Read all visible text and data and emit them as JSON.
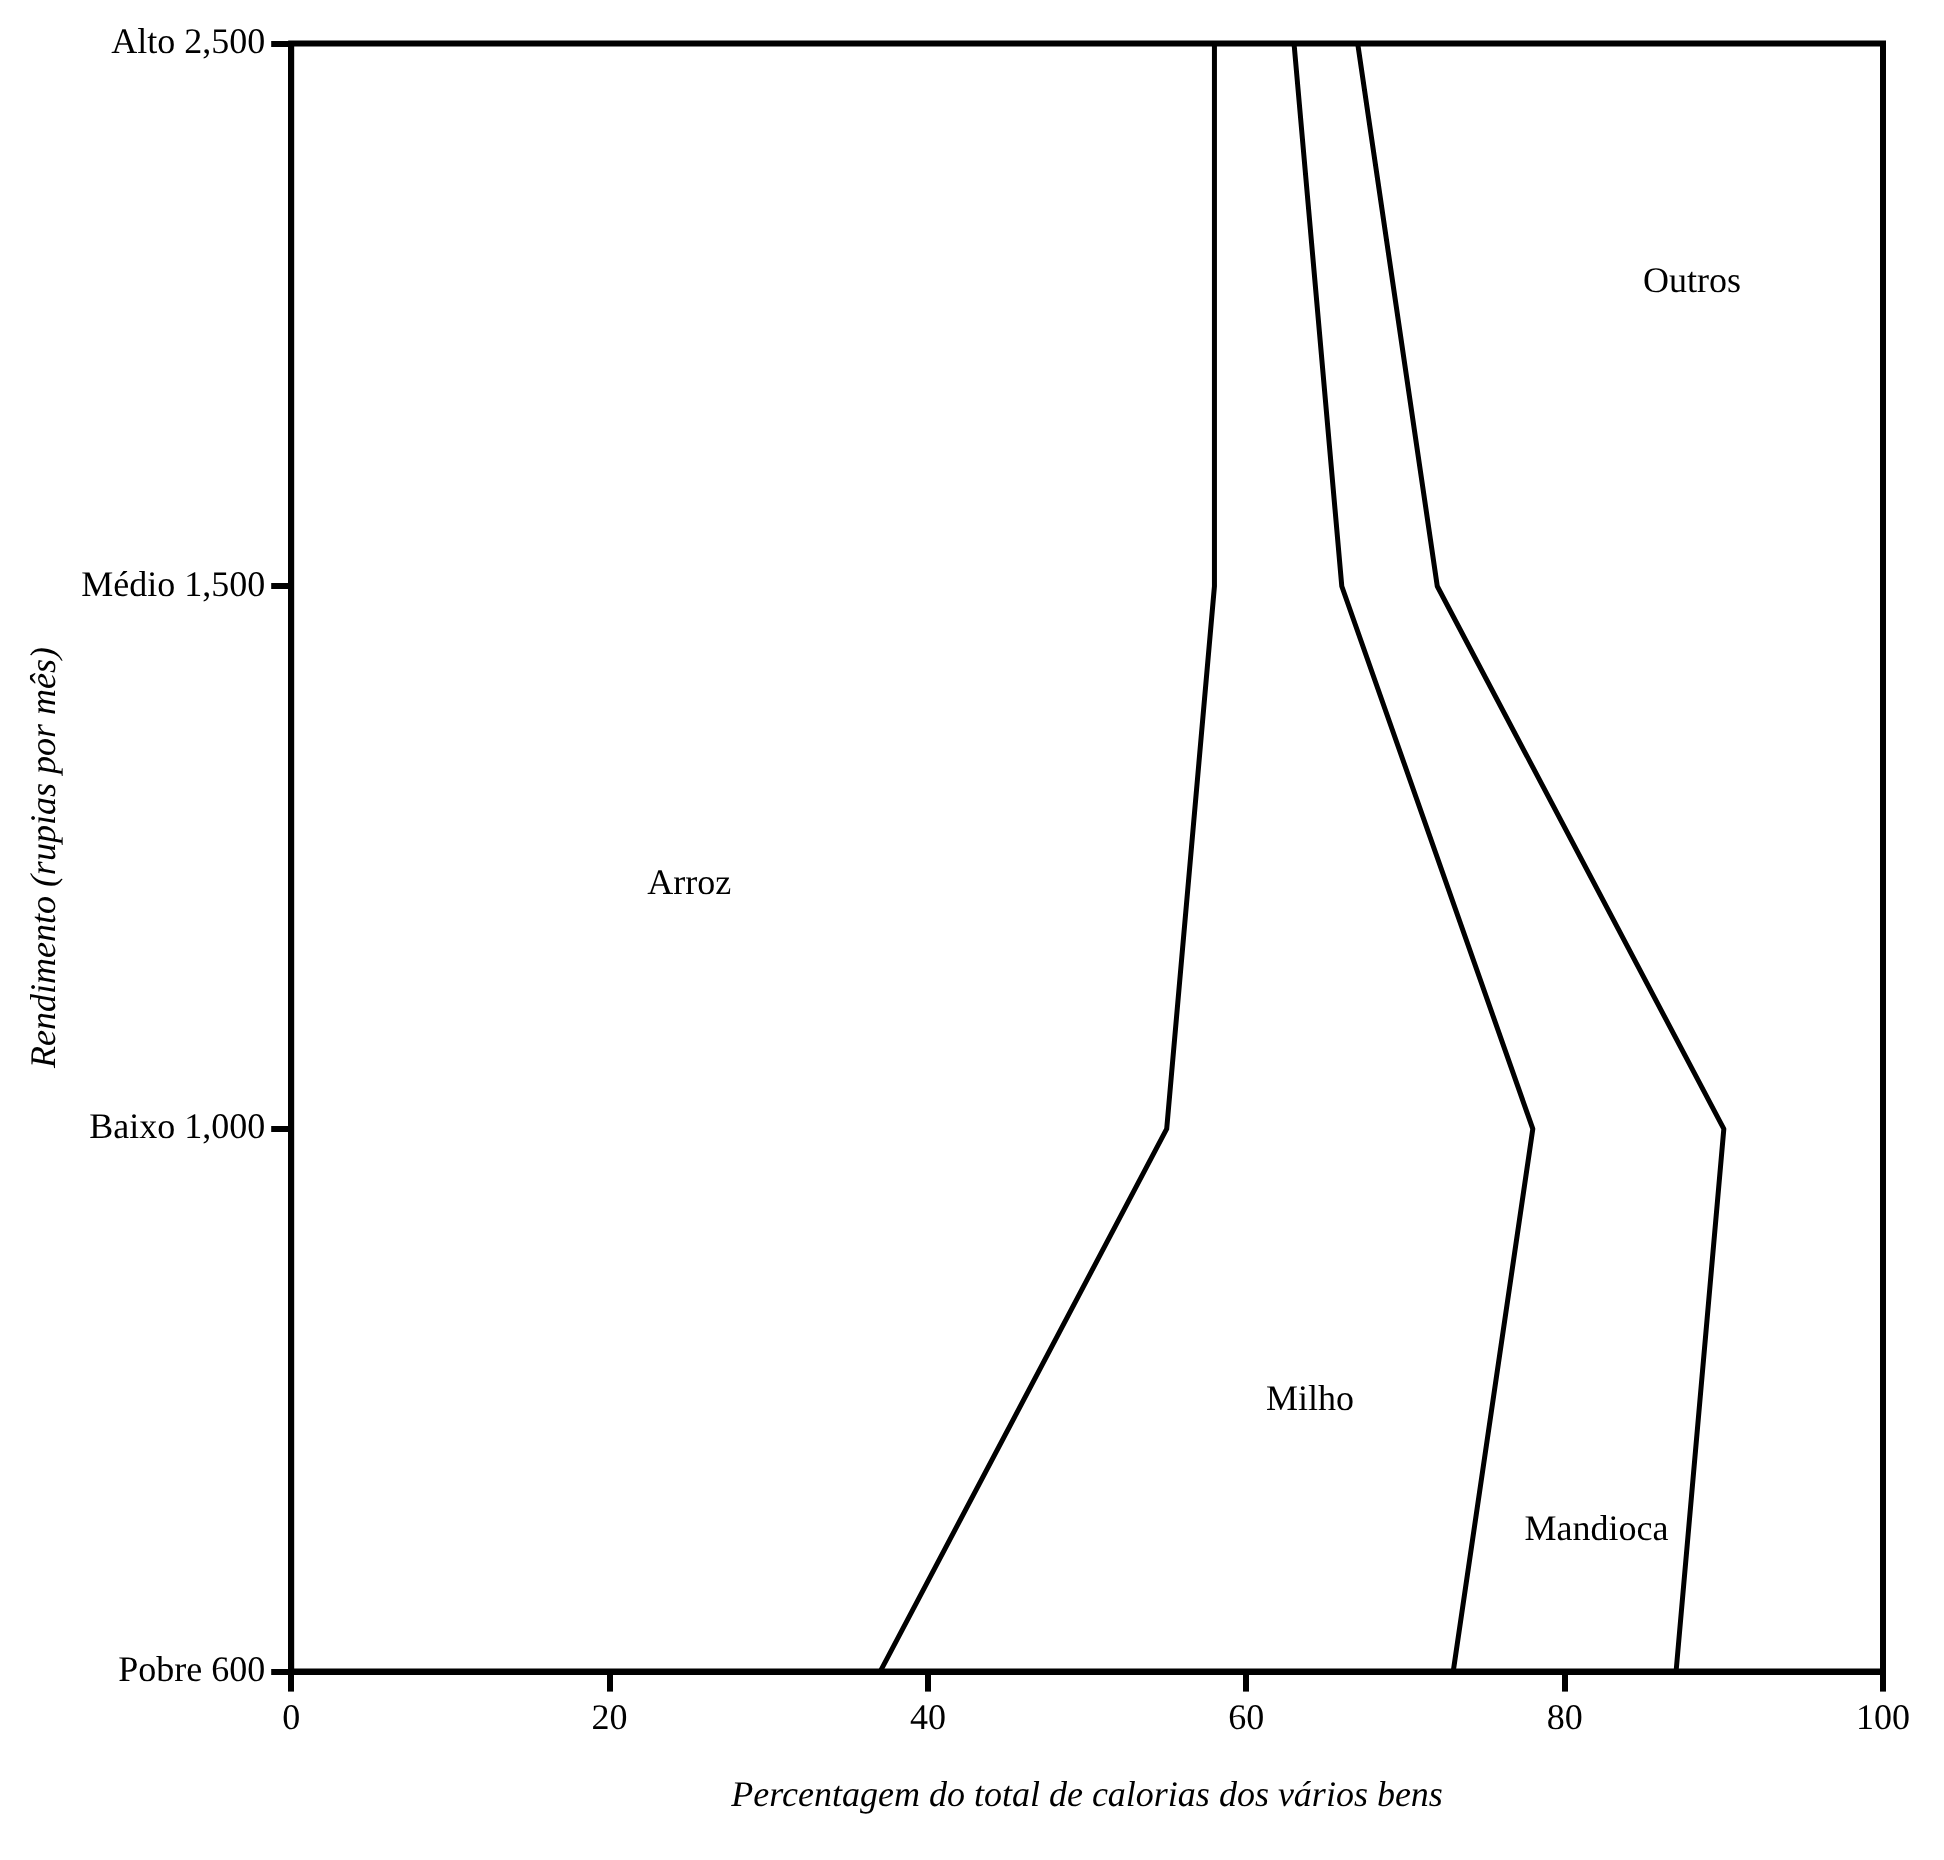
{
  "chart_data": {
    "type": "line",
    "orientation": "horizontal",
    "xlabel": "Percentagem do total de calorias dos vários bens",
    "ylabel": "Rendimento (rupias por mês)",
    "categories": [
      "Alto 2,500",
      "Médio 1,500",
      "Baixo 1,000",
      "Pobre 600"
    ],
    "series": [
      {
        "color": "#000000",
        "values": [
          58,
          58,
          55,
          37
        ]
      },
      {
        "color": "#000000",
        "values": [
          63,
          66,
          78,
          73
        ]
      },
      {
        "color": "#000000",
        "values": [
          67,
          72,
          90,
          87
        ]
      }
    ],
    "annotations": [
      "Arroz",
      "Milho",
      "Mandioca",
      "Outros"
    ],
    "xlim": [
      0,
      100
    ],
    "xticks": [
      0,
      20,
      40,
      60,
      80,
      100
    ],
    "grid": false,
    "legend": false
  }
}
